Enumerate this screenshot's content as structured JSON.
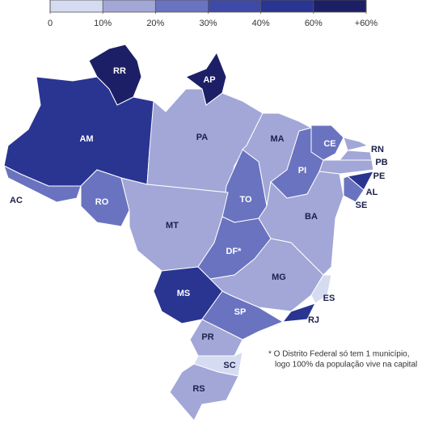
{
  "legend": {
    "colors": [
      "#d5dbf1",
      "#a2a7d7",
      "#6a73bf",
      "#3f4aa8",
      "#293591",
      "#1d1f66"
    ],
    "labels": [
      "0",
      "10%",
      "20%",
      "30%",
      "40%",
      "60%",
      "+60%"
    ]
  },
  "states": [
    {
      "label": "RR",
      "color": "#1d1f66"
    },
    {
      "label": "AP",
      "color": "#1d1f66"
    },
    {
      "label": "AM",
      "color": "#293591"
    },
    {
      "label": "AC",
      "color": "#6a73bf"
    },
    {
      "label": "PA",
      "color": "#a2a7d7"
    },
    {
      "label": "MA",
      "color": "#a2a7d7"
    },
    {
      "label": "CE",
      "color": "#6a73bf"
    },
    {
      "label": "RN",
      "color": "#a2a7d7"
    },
    {
      "label": "PB",
      "color": "#a2a7d7"
    },
    {
      "label": "PE",
      "color": "#a2a7d7"
    },
    {
      "label": "AL",
      "color": "#293591"
    },
    {
      "label": "SE",
      "color": "#6a73bf"
    },
    {
      "label": "PI",
      "color": "#6a73bf"
    },
    {
      "label": "TO",
      "color": "#6a73bf"
    },
    {
      "label": "BA",
      "color": "#a2a7d7"
    },
    {
      "label": "RO",
      "color": "#6a73bf"
    },
    {
      "label": "MT",
      "color": "#a2a7d7"
    },
    {
      "label": "DF*",
      "color": "#6a73bf"
    },
    {
      "label": "MS",
      "color": "#293591"
    },
    {
      "label": "MG",
      "color": "#a2a7d7"
    },
    {
      "label": "ES",
      "color": "#d5dbf1"
    },
    {
      "label": "RJ",
      "color": "#293591"
    },
    {
      "label": "SP",
      "color": "#6a73bf"
    },
    {
      "label": "PR",
      "color": "#a2a7d7"
    },
    {
      "label": "SC",
      "color": "#d5dbf1"
    },
    {
      "label": "RS",
      "color": "#a2a7d7"
    }
  ],
  "footnote": [
    "* O Distrito Federal só tem 1 município,",
    "logo 100% da população vive na capital"
  ]
}
